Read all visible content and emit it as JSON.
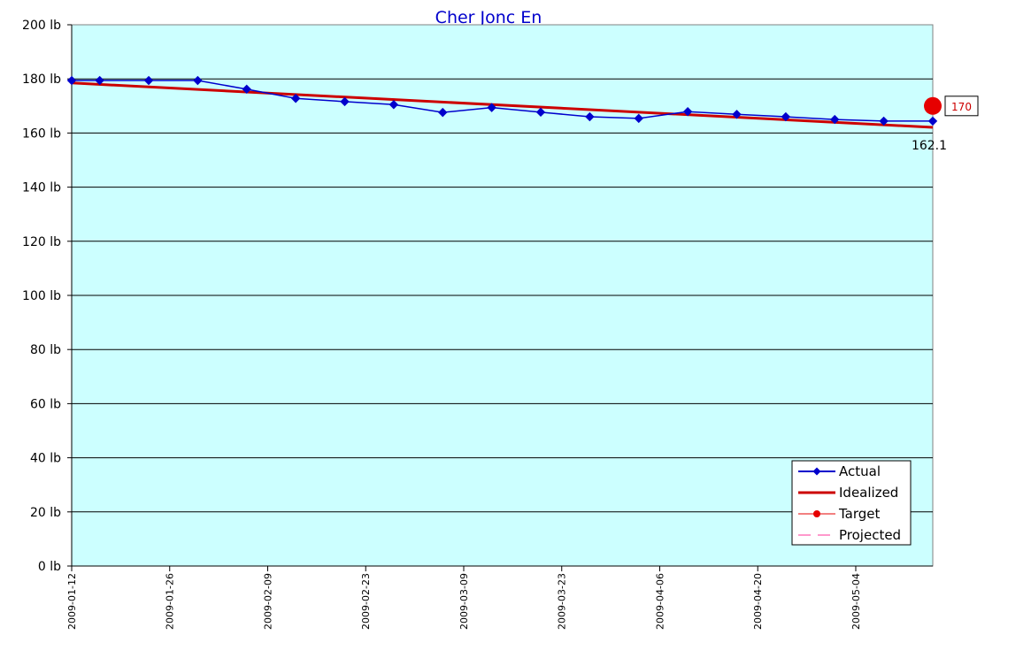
{
  "chart_data": {
    "type": "line",
    "title": "Cher Jonc En",
    "ylim": [
      0,
      200
    ],
    "y_ticks": [
      0,
      20,
      40,
      60,
      80,
      100,
      120,
      140,
      160,
      180,
      200
    ],
    "y_unit": "lb",
    "y_tick_labels": [
      "0 lb",
      "20 lb",
      "40 lb",
      "60 lb",
      "80 lb",
      "100 lb",
      "120 lb",
      "140 lb",
      "160 lb",
      "180 lb",
      "200 lb"
    ],
    "x_range": [
      "2009-01-12",
      "2009-05-15"
    ],
    "x_tick_labels": [
      "2009-01-12",
      "2009-01-26",
      "2009-02-09",
      "2009-02-23",
      "2009-03-09",
      "2009-03-23",
      "2009-04-06",
      "2009-04-20",
      "2009-05-04"
    ],
    "grid": true,
    "background": "#ccffff",
    "legend_position": "bottom-right",
    "series": [
      {
        "name": "Actual",
        "color": "#0000cc",
        "marker": "diamond",
        "points": [
          {
            "x": "2009-01-12",
            "y": 179.4
          },
          {
            "x": "2009-01-16",
            "y": 179.4
          },
          {
            "x": "2009-01-23",
            "y": 179.4
          },
          {
            "x": "2009-01-30",
            "y": 179.4
          },
          {
            "x": "2009-02-06",
            "y": 176.2
          },
          {
            "x": "2009-02-13",
            "y": 172.8
          },
          {
            "x": "2009-02-20",
            "y": 171.6
          },
          {
            "x": "2009-02-27",
            "y": 170.5
          },
          {
            "x": "2009-03-06",
            "y": 167.6
          },
          {
            "x": "2009-03-13",
            "y": 169.4
          },
          {
            "x": "2009-03-20",
            "y": 167.7
          },
          {
            "x": "2009-03-27",
            "y": 166.0
          },
          {
            "x": "2009-04-03",
            "y": 165.4
          },
          {
            "x": "2009-04-10",
            "y": 167.9
          },
          {
            "x": "2009-04-17",
            "y": 166.9
          },
          {
            "x": "2009-04-24",
            "y": 166.0
          },
          {
            "x": "2009-05-01",
            "y": 165.0
          },
          {
            "x": "2009-05-08",
            "y": 164.4
          },
          {
            "x": "2009-05-15",
            "y": 164.4
          }
        ]
      },
      {
        "name": "Idealized",
        "color": "#cc0000",
        "points": [
          {
            "x": "2009-01-12",
            "y": 178.5
          },
          {
            "x": "2009-05-15",
            "y": 162.1
          }
        ]
      },
      {
        "name": "Target",
        "color": "#e60000",
        "marker": "circle",
        "points": [
          {
            "x": "2009-05-15",
            "y": 170
          }
        ]
      },
      {
        "name": "Projected",
        "color": "#ff3399",
        "dash": "dashed",
        "points": []
      }
    ],
    "annotations": [
      {
        "text": "162.1",
        "x": "2009-05-15",
        "y": 162.1,
        "series": "Idealized"
      },
      {
        "text": "170",
        "x": "2009-05-15",
        "y": 170,
        "series": "Target",
        "boxed": true
      }
    ]
  }
}
